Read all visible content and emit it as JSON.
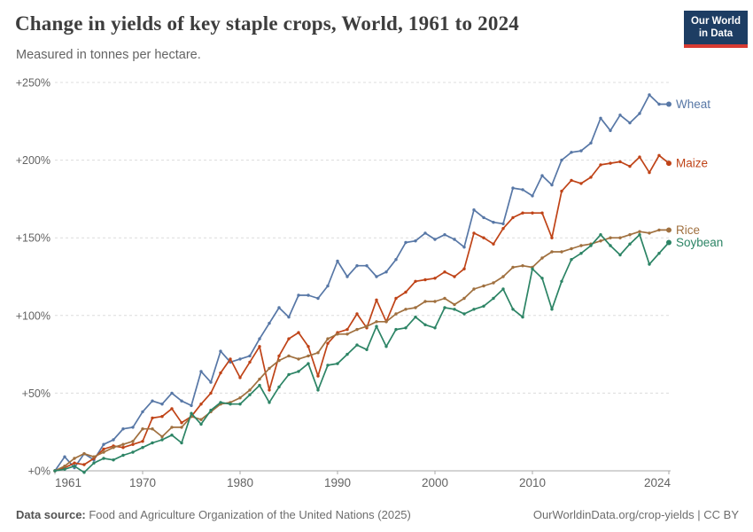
{
  "header": {
    "title": "Change in yields of key staple crops, World, 1961 to 2024",
    "subtitle": "Measured in tonnes per hectare.",
    "logo": {
      "line1": "Our World",
      "line2": "in Data",
      "bg_color": "#1d3d63",
      "accent_color": "#d73a32",
      "text_color": "#ffffff"
    }
  },
  "footer": {
    "source_label": "Data source:",
    "source_value": " Food and Agriculture Organization of the United Nations (2025)",
    "credit": "OurWorldinData.org/crop-yields | CC BY"
  },
  "chart_data": {
    "type": "line",
    "title": "Change in yields of key staple crops, World, 1961 to 2024",
    "subtitle": "Measured in tonnes per hectare.",
    "xlabel": "",
    "ylabel": "",
    "ylim": [
      0,
      250
    ],
    "yticks": [
      0,
      50,
      100,
      150,
      200,
      250
    ],
    "ytick_labels": [
      "+0%",
      "+50%",
      "+100%",
      "+150%",
      "+200%",
      "+250%"
    ],
    "xticks": [
      1961,
      1970,
      1980,
      1990,
      2000,
      2010,
      2024
    ],
    "grid": "horizontal-dashed",
    "legend": "line-end-labels",
    "unit": "% change since 1961",
    "style": {
      "grid_color": "#dcdcdc",
      "axis_color": "#a8a8a8",
      "tick_text_color": "#636363"
    },
    "x": [
      1961,
      1962,
      1963,
      1964,
      1965,
      1966,
      1967,
      1968,
      1969,
      1970,
      1971,
      1972,
      1973,
      1974,
      1975,
      1976,
      1977,
      1978,
      1979,
      1980,
      1981,
      1982,
      1983,
      1984,
      1985,
      1986,
      1987,
      1988,
      1989,
      1990,
      1991,
      1992,
      1993,
      1994,
      1995,
      1996,
      1997,
      1998,
      1999,
      2000,
      2001,
      2002,
      2003,
      2004,
      2005,
      2006,
      2007,
      2008,
      2009,
      2010,
      2011,
      2012,
      2013,
      2014,
      2015,
      2016,
      2017,
      2018,
      2019,
      2020,
      2021,
      2022,
      2023,
      2024
    ],
    "series": [
      {
        "name": "Wheat",
        "color": "#5777a6",
        "values": [
          0,
          9,
          2,
          11,
          7,
          17,
          20,
          27,
          28,
          38,
          45,
          43,
          50,
          45,
          42,
          64,
          57,
          77,
          70,
          72,
          74,
          85,
          95,
          105,
          99,
          113,
          113,
          111,
          119,
          135,
          125,
          132,
          132,
          125,
          128,
          136,
          147,
          148,
          153,
          149,
          152,
          149,
          144,
          168,
          163,
          160,
          159,
          182,
          181,
          177,
          190,
          184,
          200,
          205,
          206,
          211,
          227,
          219,
          229,
          224,
          230,
          242,
          236,
          236
        ]
      },
      {
        "name": "Maize",
        "color": "#bf4317",
        "values": [
          0,
          2,
          5,
          4,
          8,
          14,
          16,
          15,
          17,
          19,
          34,
          35,
          40,
          31,
          35,
          43,
          50,
          63,
          72,
          60,
          70,
          80,
          52,
          74,
          85,
          89,
          80,
          61,
          82,
          89,
          91,
          101,
          92,
          110,
          96,
          111,
          115,
          122,
          123,
          124,
          128,
          125,
          130,
          153,
          150,
          146,
          156,
          163,
          166,
          166,
          166,
          150,
          180,
          187,
          185,
          189,
          197,
          198,
          199,
          196,
          202,
          192,
          203,
          198
        ]
      },
      {
        "name": "Rice",
        "color": "#a0703f",
        "values": [
          0,
          3,
          8,
          11,
          9,
          12,
          15,
          17,
          19,
          27,
          27,
          22,
          28,
          28,
          35,
          33,
          38,
          43,
          44,
          47,
          52,
          59,
          66,
          71,
          74,
          72,
          74,
          76,
          85,
          88,
          88,
          91,
          93,
          96,
          96,
          101,
          104,
          105,
          109,
          109,
          111,
          107,
          111,
          117,
          119,
          121,
          125,
          131,
          132,
          131,
          137,
          141,
          141,
          143,
          145,
          146,
          148,
          150,
          150,
          152,
          154,
          153,
          155,
          155
        ]
      },
      {
        "name": "Soybean",
        "color": "#2c8465",
        "values": [
          0,
          1,
          3,
          -1,
          5,
          8,
          7,
          10,
          12,
          15,
          18,
          20,
          23,
          18,
          37,
          30,
          39,
          44,
          43,
          43,
          49,
          55,
          44,
          54,
          62,
          64,
          69,
          52,
          68,
          69,
          75,
          81,
          78,
          93,
          80,
          91,
          92,
          99,
          94,
          92,
          105,
          104,
          101,
          104,
          106,
          111,
          117,
          104,
          99,
          130,
          124,
          104,
          122,
          136,
          140,
          145,
          152,
          145,
          139,
          146,
          152,
          133,
          140,
          147
        ]
      }
    ]
  }
}
